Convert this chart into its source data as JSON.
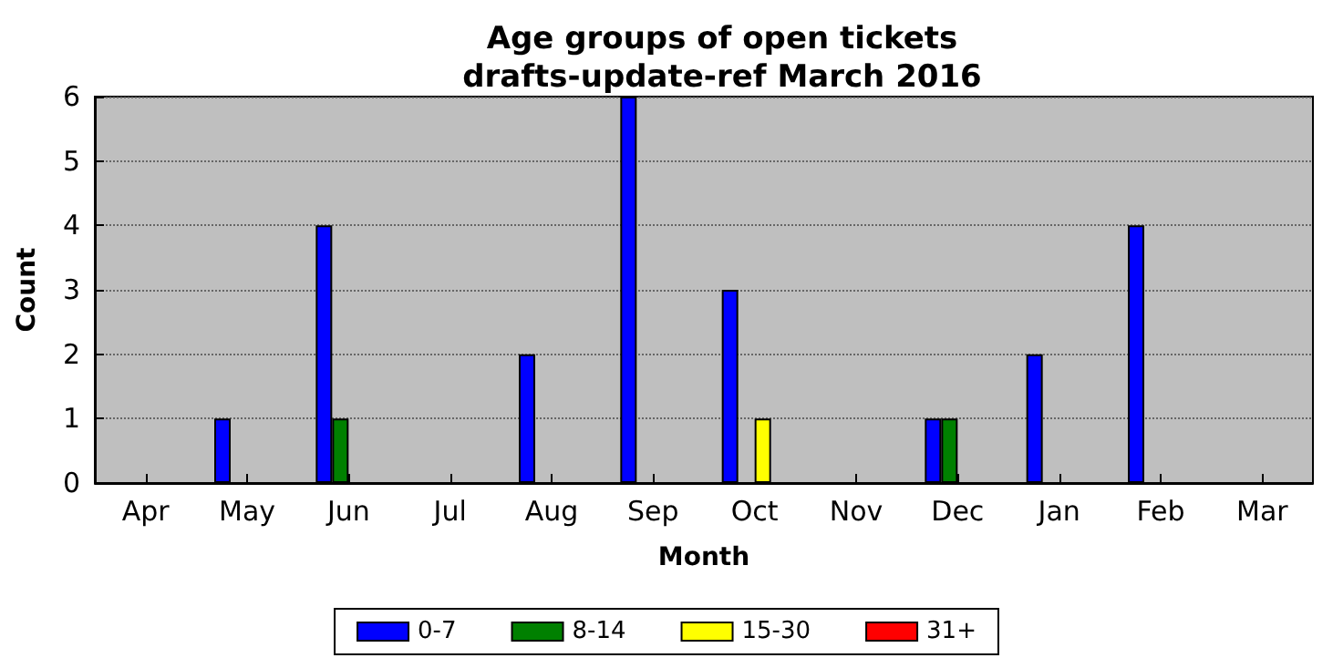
{
  "chart_data": {
    "type": "bar",
    "title": "Age groups of open tickets\ndrafts-update-ref March 2016",
    "xlabel": "Month",
    "ylabel": "Count",
    "categories": [
      "Apr",
      "May",
      "Jun",
      "Jul",
      "Aug",
      "Sep",
      "Oct",
      "Nov",
      "Dec",
      "Jan",
      "Feb",
      "Mar"
    ],
    "series": [
      {
        "name": "0-7",
        "color": "#0000ff",
        "values": [
          0,
          1,
          4,
          0,
          2,
          6,
          3,
          0,
          1,
          2,
          4,
          0
        ]
      },
      {
        "name": "8-14",
        "color": "#008000",
        "values": [
          0,
          0,
          1,
          0,
          0,
          0,
          0,
          0,
          1,
          0,
          0,
          0
        ]
      },
      {
        "name": "15-30",
        "color": "#ffff00",
        "values": [
          0,
          0,
          0,
          0,
          0,
          0,
          1,
          0,
          0,
          0,
          0,
          0
        ]
      },
      {
        "name": "31+",
        "color": "#ff0000",
        "values": [
          0,
          0,
          0,
          0,
          0,
          0,
          0,
          0,
          0,
          0,
          0,
          0
        ]
      }
    ],
    "ylim": [
      0,
      6
    ],
    "yticks": [
      0,
      1,
      2,
      3,
      4,
      5,
      6
    ],
    "grid": "y",
    "legend": "bottom"
  }
}
